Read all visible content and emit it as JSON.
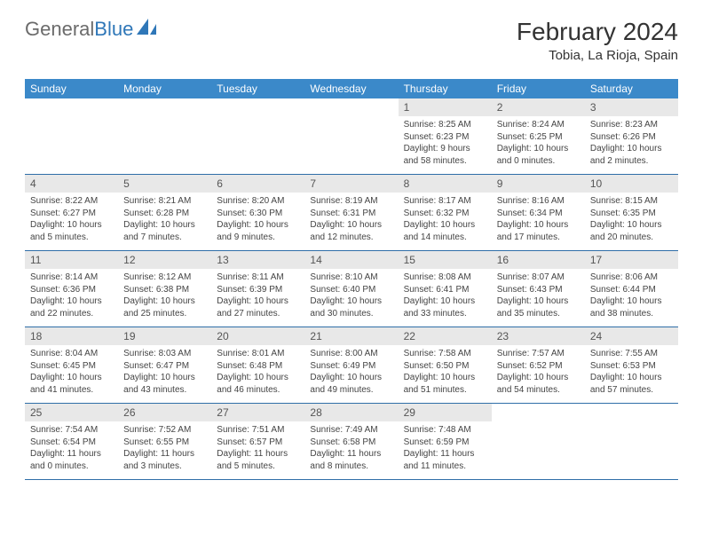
{
  "brand": {
    "name_part1": "General",
    "name_part2": "Blue"
  },
  "title": "February 2024",
  "location": "Tobia, La Rioja, Spain",
  "accent_color": "#3b89c9",
  "weekdays": [
    "Sunday",
    "Monday",
    "Tuesday",
    "Wednesday",
    "Thursday",
    "Friday",
    "Saturday"
  ],
  "weeks": [
    {
      "nums": [
        "",
        "",
        "",
        "",
        "1",
        "2",
        "3"
      ],
      "cells": [
        null,
        null,
        null,
        null,
        {
          "sunrise": "8:25 AM",
          "sunset": "6:23 PM",
          "daylight": "9 hours and 58 minutes."
        },
        {
          "sunrise": "8:24 AM",
          "sunset": "6:25 PM",
          "daylight": "10 hours and 0 minutes."
        },
        {
          "sunrise": "8:23 AM",
          "sunset": "6:26 PM",
          "daylight": "10 hours and 2 minutes."
        }
      ]
    },
    {
      "nums": [
        "4",
        "5",
        "6",
        "7",
        "8",
        "9",
        "10"
      ],
      "cells": [
        {
          "sunrise": "8:22 AM",
          "sunset": "6:27 PM",
          "daylight": "10 hours and 5 minutes."
        },
        {
          "sunrise": "8:21 AM",
          "sunset": "6:28 PM",
          "daylight": "10 hours and 7 minutes."
        },
        {
          "sunrise": "8:20 AM",
          "sunset": "6:30 PM",
          "daylight": "10 hours and 9 minutes."
        },
        {
          "sunrise": "8:19 AM",
          "sunset": "6:31 PM",
          "daylight": "10 hours and 12 minutes."
        },
        {
          "sunrise": "8:17 AM",
          "sunset": "6:32 PM",
          "daylight": "10 hours and 14 minutes."
        },
        {
          "sunrise": "8:16 AM",
          "sunset": "6:34 PM",
          "daylight": "10 hours and 17 minutes."
        },
        {
          "sunrise": "8:15 AM",
          "sunset": "6:35 PM",
          "daylight": "10 hours and 20 minutes."
        }
      ]
    },
    {
      "nums": [
        "11",
        "12",
        "13",
        "14",
        "15",
        "16",
        "17"
      ],
      "cells": [
        {
          "sunrise": "8:14 AM",
          "sunset": "6:36 PM",
          "daylight": "10 hours and 22 minutes."
        },
        {
          "sunrise": "8:12 AM",
          "sunset": "6:38 PM",
          "daylight": "10 hours and 25 minutes."
        },
        {
          "sunrise": "8:11 AM",
          "sunset": "6:39 PM",
          "daylight": "10 hours and 27 minutes."
        },
        {
          "sunrise": "8:10 AM",
          "sunset": "6:40 PM",
          "daylight": "10 hours and 30 minutes."
        },
        {
          "sunrise": "8:08 AM",
          "sunset": "6:41 PM",
          "daylight": "10 hours and 33 minutes."
        },
        {
          "sunrise": "8:07 AM",
          "sunset": "6:43 PM",
          "daylight": "10 hours and 35 minutes."
        },
        {
          "sunrise": "8:06 AM",
          "sunset": "6:44 PM",
          "daylight": "10 hours and 38 minutes."
        }
      ]
    },
    {
      "nums": [
        "18",
        "19",
        "20",
        "21",
        "22",
        "23",
        "24"
      ],
      "cells": [
        {
          "sunrise": "8:04 AM",
          "sunset": "6:45 PM",
          "daylight": "10 hours and 41 minutes."
        },
        {
          "sunrise": "8:03 AM",
          "sunset": "6:47 PM",
          "daylight": "10 hours and 43 minutes."
        },
        {
          "sunrise": "8:01 AM",
          "sunset": "6:48 PM",
          "daylight": "10 hours and 46 minutes."
        },
        {
          "sunrise": "8:00 AM",
          "sunset": "6:49 PM",
          "daylight": "10 hours and 49 minutes."
        },
        {
          "sunrise": "7:58 AM",
          "sunset": "6:50 PM",
          "daylight": "10 hours and 51 minutes."
        },
        {
          "sunrise": "7:57 AM",
          "sunset": "6:52 PM",
          "daylight": "10 hours and 54 minutes."
        },
        {
          "sunrise": "7:55 AM",
          "sunset": "6:53 PM",
          "daylight": "10 hours and 57 minutes."
        }
      ]
    },
    {
      "nums": [
        "25",
        "26",
        "27",
        "28",
        "29",
        "",
        ""
      ],
      "cells": [
        {
          "sunrise": "7:54 AM",
          "sunset": "6:54 PM",
          "daylight": "11 hours and 0 minutes."
        },
        {
          "sunrise": "7:52 AM",
          "sunset": "6:55 PM",
          "daylight": "11 hours and 3 minutes."
        },
        {
          "sunrise": "7:51 AM",
          "sunset": "6:57 PM",
          "daylight": "11 hours and 5 minutes."
        },
        {
          "sunrise": "7:49 AM",
          "sunset": "6:58 PM",
          "daylight": "11 hours and 8 minutes."
        },
        {
          "sunrise": "7:48 AM",
          "sunset": "6:59 PM",
          "daylight": "11 hours and 11 minutes."
        },
        null,
        null
      ]
    }
  ]
}
